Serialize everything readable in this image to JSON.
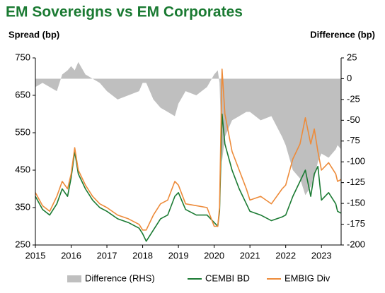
{
  "chart_data": {
    "type": "line",
    "title": "EM Sovereigns vs EM Corporates",
    "y_label": "Spread (bp)",
    "y2_label": "Difference (bp)",
    "x": [
      2015.0,
      2015.2,
      2015.4,
      2015.6,
      2015.75,
      2015.9,
      2016.0,
      2016.1,
      2016.2,
      2016.4,
      2016.6,
      2016.8,
      2017.0,
      2017.3,
      2017.6,
      2017.9,
      2018.0,
      2018.1,
      2018.3,
      2018.5,
      2018.7,
      2018.9,
      2019.0,
      2019.2,
      2019.5,
      2019.8,
      2020.0,
      2020.1,
      2020.15,
      2020.22,
      2020.3,
      2020.5,
      2020.7,
      2020.9,
      2021.0,
      2021.3,
      2021.6,
      2021.9,
      2022.0,
      2022.2,
      2022.4,
      2022.55,
      2022.7,
      2022.8,
      2022.9,
      2023.0,
      2023.2,
      2023.4,
      2023.45,
      2023.55
    ],
    "series": [
      {
        "name": "Difference (RHS)",
        "color": "#bfbfbf",
        "kind": "area",
        "axis": "y2",
        "values": [
          -10,
          -5,
          -10,
          -15,
          5,
          10,
          15,
          10,
          20,
          5,
          0,
          -5,
          -15,
          -25,
          -20,
          -15,
          -5,
          -5,
          -25,
          -35,
          -40,
          -45,
          -30,
          -15,
          -20,
          -10,
          5,
          10,
          -5,
          -100,
          -70,
          -50,
          -45,
          -40,
          -40,
          -50,
          -45,
          -70,
          -80,
          -110,
          -120,
          -140,
          -130,
          -120,
          -100,
          -90,
          -95,
          -85,
          -80,
          -85
        ]
      },
      {
        "name": "CEMBI BD",
        "color": "#1a7a32",
        "kind": "line",
        "values": [
          380,
          345,
          330,
          360,
          400,
          380,
          430,
          500,
          440,
          400,
          370,
          350,
          340,
          320,
          310,
          295,
          280,
          260,
          290,
          320,
          330,
          380,
          390,
          345,
          330,
          330,
          310,
          300,
          340,
          600,
          520,
          450,
          400,
          360,
          340,
          330,
          315,
          325,
          330,
          380,
          420,
          450,
          380,
          440,
          460,
          370,
          390,
          360,
          340,
          335
        ]
      },
      {
        "name": "EMBIG Div",
        "color": "#ed8b3a",
        "kind": "line",
        "values": [
          390,
          355,
          340,
          380,
          420,
          400,
          440,
          510,
          450,
          410,
          380,
          360,
          350,
          330,
          320,
          305,
          290,
          290,
          330,
          360,
          370,
          420,
          410,
          360,
          355,
          350,
          300,
          300,
          350,
          720,
          600,
          500,
          450,
          400,
          370,
          380,
          360,
          400,
          410,
          480,
          520,
          590,
          520,
          560,
          500,
          450,
          470,
          440,
          420,
          425
        ]
      }
    ],
    "xlim": [
      2015,
      2023.55
    ],
    "xticks": [
      2015,
      2016,
      2017,
      2018,
      2019,
      2020,
      2021,
      2022,
      2023
    ],
    "ylim": [
      250,
      750
    ],
    "yticks": [
      250,
      350,
      450,
      550,
      650,
      750
    ],
    "y2lim": [
      -200,
      25
    ],
    "y2ticks": [
      25,
      0,
      -25,
      -50,
      -75,
      -100,
      -125,
      -150,
      -175,
      -200
    ]
  }
}
